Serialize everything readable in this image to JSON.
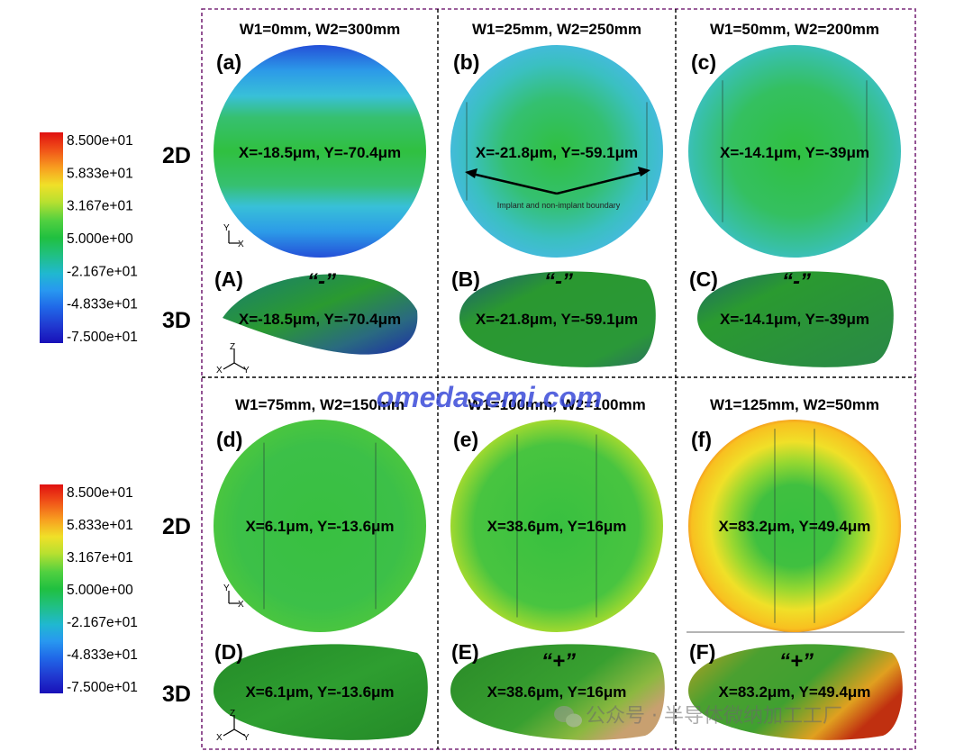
{
  "colorbar": {
    "ticks": [
      "8.500e+01",
      "5.833e+01",
      "3.167e+01",
      "5.000e+00",
      "-2.167e+01",
      "-4.833e+01",
      "-7.500e+01"
    ],
    "colors": [
      "#e01010",
      "#f05010",
      "#f8a018",
      "#f8e020",
      "#c8e828",
      "#70d840",
      "#28c838",
      "#20c060",
      "#20c0a0",
      "#20b0e0",
      "#2890f0",
      "#2060e8",
      "#2038d8",
      "#1810c0"
    ]
  },
  "row_labels": {
    "d2": "2D",
    "d3": "3D"
  },
  "sign_labels": {
    "minus": "“-”",
    "plus": "“+”"
  },
  "annotation": {
    "boundary": "Implant and non-implant boundary"
  },
  "axes": {
    "y": "Y",
    "x": "X",
    "z": "Z"
  },
  "panels": [
    {
      "title": "W1=0mm, W2=300mm",
      "label2d": "(a)",
      "label3d": "(A)",
      "value": "X=-18.5μm, Y=-70.4μm",
      "sign": "minus"
    },
    {
      "title": "W1=25mm, W2=250mm",
      "label2d": "(b)",
      "label3d": "(B)",
      "value": "X=-21.8μm, Y=-59.1μm",
      "sign": "minus"
    },
    {
      "title": "W1=50mm, W2=200mm",
      "label2d": "(c)",
      "label3d": "(C)",
      "value": "X=-14.1μm, Y=-39μm",
      "sign": "minus"
    },
    {
      "title": "W1=75mm, W2=150mm",
      "label2d": "(d)",
      "label3d": "(D)",
      "value": "X=6.1μm, Y=-13.6μm",
      "sign": ""
    },
    {
      "title": "W1=100mm, W2=100mm",
      "label2d": "(e)",
      "label3d": "(E)",
      "value": "X=38.6μm, Y=16μm",
      "sign": "plus"
    },
    {
      "title": "W1=125mm, W2=50mm",
      "label2d": "(f)",
      "label3d": "(F)",
      "value": "X=83.2μm, Y=49.4μm",
      "sign": "plus"
    }
  ],
  "watermark": "omedasemi.com",
  "wechat": "公众号 · 半导体微纳加工工厂"
}
